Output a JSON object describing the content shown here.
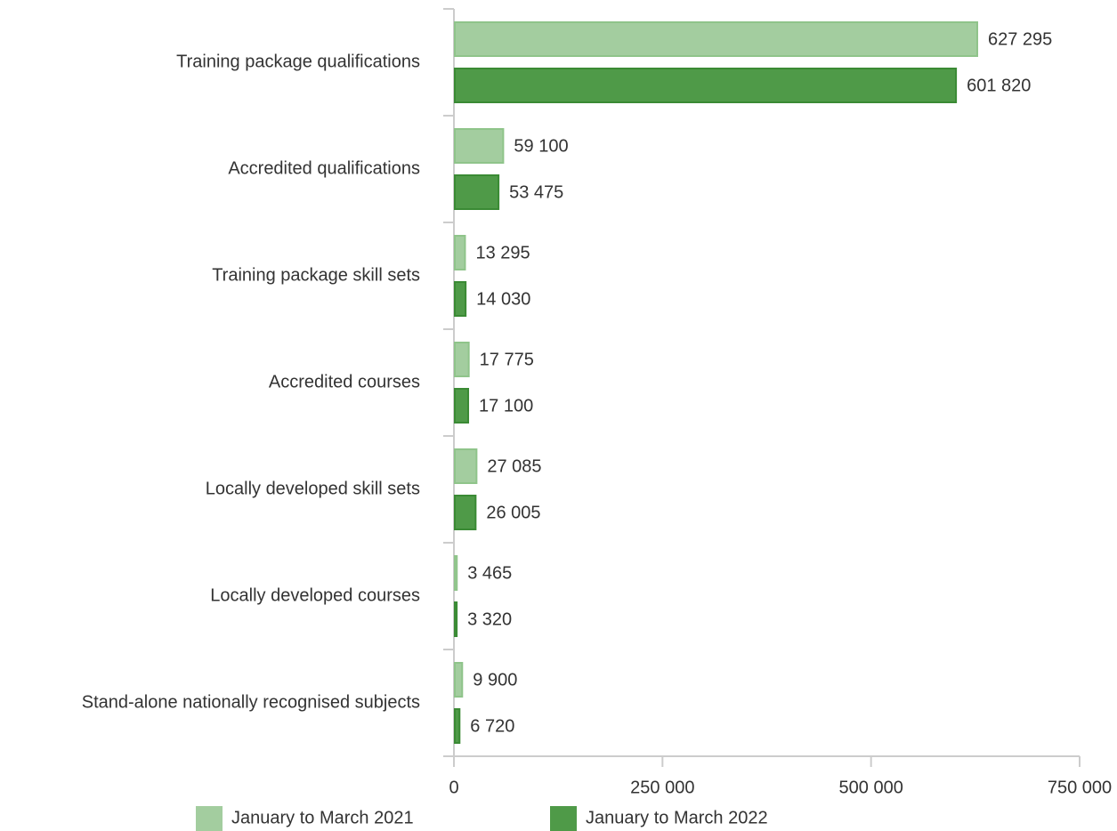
{
  "chart_data": {
    "type": "bar",
    "orientation": "horizontal",
    "categories": [
      "Training package qualifications",
      "Accredited qualifications",
      "Training package skill sets",
      "Accredited courses",
      "Locally developed skill sets",
      "Locally developed courses",
      "Stand-alone nationally recognised subjects"
    ],
    "series": [
      {
        "name": "January to March 2021",
        "color": "#a3cd9f",
        "values": [
          627295,
          59100,
          13295,
          17775,
          27085,
          3465,
          9900
        ],
        "value_labels": [
          "627 295",
          "59 100",
          "13 295",
          "17 775",
          "27 085",
          "3 465",
          "9 900"
        ]
      },
      {
        "name": "January to March 2022",
        "color": "#4f9a48",
        "values": [
          601820,
          53475,
          14030,
          17100,
          26005,
          3320,
          6720
        ],
        "value_labels": [
          "601 820",
          "53 475",
          "14 030",
          "17 100",
          "26 005",
          "3 320",
          "6 720"
        ]
      }
    ],
    "xlim": [
      0,
      750000
    ],
    "xticks": [
      0,
      {
        "value": 250000,
        "label": "250 000"
      },
      {
        "value": 500000,
        "label": "500 000"
      },
      {
        "value": 750000,
        "label": "750 000"
      }
    ],
    "legend": "bottom"
  }
}
